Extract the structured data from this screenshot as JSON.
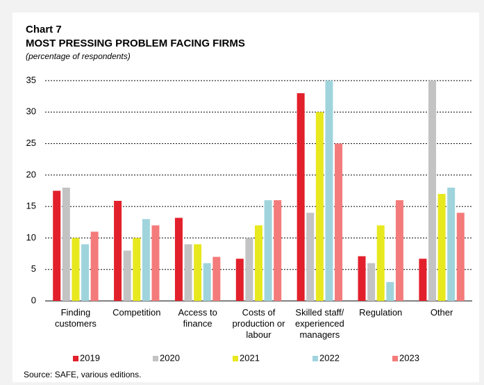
{
  "chart_data": {
    "type": "bar",
    "title": "Chart 7",
    "subtitle": "MOST PRESSING PROBLEM FACING FIRMS",
    "note": "(percentage of respondents)",
    "source": "Source: SAFE, various editions.",
    "categories": [
      "Finding\ncustomers",
      "Competition",
      "Access to\nfinance",
      "Costs of\nproduction or\nlabour",
      "Skilled staff/\nexperienced\nmanagers",
      "Regulation",
      "Other"
    ],
    "series": [
      {
        "name": "2019",
        "color": "#e2202b",
        "values": [
          17.5,
          15.9,
          13.2,
          6.7,
          33,
          7.1,
          6.7
        ]
      },
      {
        "name": "2020",
        "color": "#c3c3c3",
        "values": [
          18,
          8,
          9,
          10,
          14,
          6,
          35
        ]
      },
      {
        "name": "2021",
        "color": "#e8e81e",
        "values": [
          10,
          10,
          9,
          12,
          30,
          12,
          17
        ]
      },
      {
        "name": "2022",
        "color": "#a0d4dd",
        "values": [
          9,
          13,
          6,
          16,
          35,
          3,
          18
        ]
      },
      {
        "name": "2023",
        "color": "#f47b7b",
        "values": [
          11,
          12,
          7,
          16,
          25,
          16,
          14
        ]
      }
    ],
    "ylim": [
      0,
      35
    ],
    "yticks": [
      0,
      5,
      10,
      15,
      20,
      25,
      30,
      35
    ],
    "grid": true,
    "legend": "bottom"
  }
}
